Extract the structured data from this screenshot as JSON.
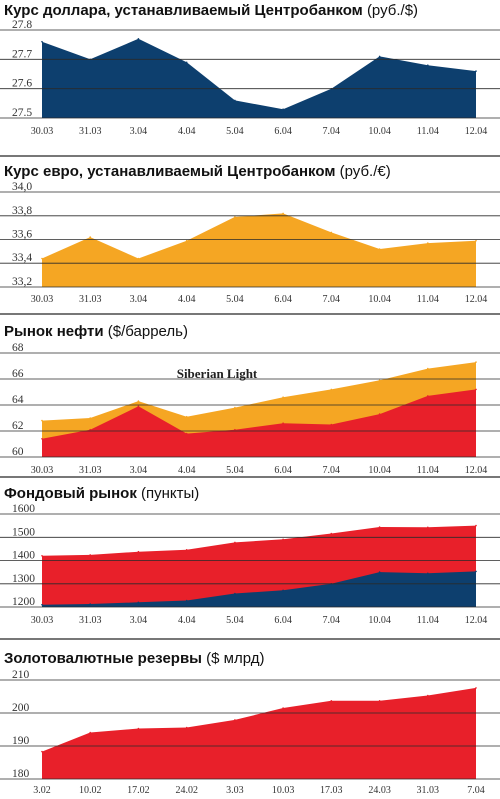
{
  "chart_data": [
    {
      "type": "area",
      "title": "Курс доллара, устанавливаемый Центробанком",
      "unit": "(руб./$)",
      "categories": [
        "30.03",
        "31.03",
        "3.04",
        "4.04",
        "5.04",
        "6.04",
        "7.04",
        "10.04",
        "11.04",
        "12.04"
      ],
      "yticks": [
        "27.8",
        "27.7",
        "27.6",
        "27.5"
      ],
      "ylim": [
        27.5,
        27.8
      ],
      "grid": true,
      "series": [
        {
          "values": [
            27.76,
            27.7,
            27.77,
            27.69,
            27.56,
            27.53,
            27.6,
            27.71,
            27.68,
            27.66
          ],
          "color": "#0d3f6e"
        }
      ]
    },
    {
      "type": "area",
      "title": "Курс евро, устанавливаемый Центробанком",
      "unit": "(руб./€)",
      "categories": [
        "30.03",
        "31.03",
        "3.04",
        "4.04",
        "5.04",
        "6.04",
        "7.04",
        "10.04",
        "11.04",
        "12.04"
      ],
      "yticks": [
        "34,0",
        "33,8",
        "33,6",
        "33,4",
        "33,2"
      ],
      "ylim": [
        33.2,
        34.0
      ],
      "grid": true,
      "series": [
        {
          "values": [
            33.44,
            33.62,
            33.44,
            33.59,
            33.79,
            33.82,
            33.66,
            33.52,
            33.57,
            33.59
          ],
          "color": "#f5a623"
        }
      ]
    },
    {
      "type": "area",
      "title": "Рынок нефти",
      "unit": "($/баррель)",
      "categories": [
        "30.03",
        "31.03",
        "3.04",
        "4.04",
        "5.04",
        "6.04",
        "7.04",
        "10.04",
        "11.04",
        "12.04"
      ],
      "yticks": [
        "68",
        "66",
        "64",
        "62",
        "60"
      ],
      "ylim": [
        60,
        68
      ],
      "grid": true,
      "annotation": "Siberian Light",
      "series": [
        {
          "values": [
            62.8,
            63.0,
            64.3,
            63.1,
            63.8,
            64.6,
            65.2,
            65.9,
            66.8,
            67.3
          ],
          "color": "#f5a623"
        },
        {
          "values": [
            61.4,
            62.1,
            63.9,
            61.8,
            62.1,
            62.6,
            62.5,
            63.3,
            64.7,
            65.2
          ],
          "color": "#e8202a"
        }
      ]
    },
    {
      "type": "area",
      "title": "Фондовый рынок",
      "unit": "(пункты)",
      "categories": [
        "30.03",
        "31.03",
        "3.04",
        "4.04",
        "5.04",
        "6.04",
        "7.04",
        "10.04",
        "11.04",
        "12.04"
      ],
      "yticks": [
        "1600",
        "1500",
        "1400",
        "1300",
        "1200"
      ],
      "ylim": [
        1200,
        1600
      ],
      "grid": true,
      "series": [
        {
          "values": [
            1420,
            1424,
            1438,
            1446,
            1478,
            1491,
            1516,
            1544,
            1543,
            1550
          ],
          "color": "#e8202a"
        },
        {
          "values": [
            1210,
            1213,
            1220,
            1228,
            1258,
            1272,
            1300,
            1350,
            1345,
            1353
          ],
          "color": "#0d3f6e"
        }
      ]
    },
    {
      "type": "area",
      "title": "Золотовалютные резервы",
      "unit": "($ млрд)",
      "categories": [
        "3.02",
        "10.02",
        "17.02",
        "24.02",
        "3.03",
        "10.03",
        "17.03",
        "24.03",
        "31.03",
        "7.04"
      ],
      "yticks": [
        "210",
        "200",
        "190",
        "180"
      ],
      "ylim": [
        180,
        210
      ],
      "grid": true,
      "series": [
        {
          "values": [
            188.3,
            194.1,
            195.3,
            195.6,
            197.9,
            201.5,
            203.7,
            203.7,
            205.3,
            207.6
          ],
          "color": "#e8202a"
        }
      ]
    }
  ]
}
